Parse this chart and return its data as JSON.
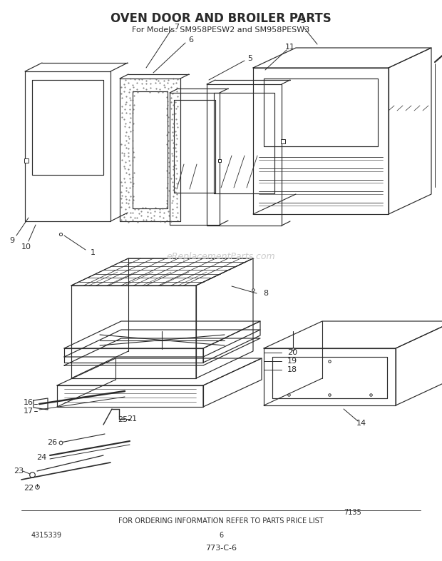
{
  "title": "OVEN DOOR AND BROILER PARTS",
  "subtitle": "For Models: SM958PESW2 and SM958PESW3",
  "footer1": "FOR ORDERING INFORMATION REFER TO PARTS PRICE LIST",
  "footer2": "4315339",
  "footer3": "6",
  "footer4": "773-C-6",
  "footer5": "7135",
  "watermark": "eReplacementParts.com",
  "bg_color": "#ffffff",
  "lc": "#2a2a2a",
  "wm_color": "#cccccc"
}
